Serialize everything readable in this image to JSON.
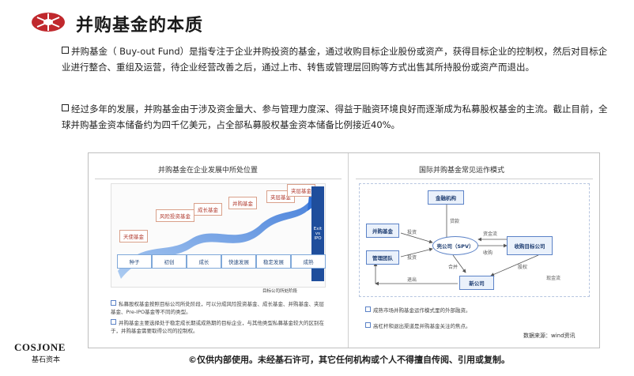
{
  "title": "并购基金的本质",
  "paragraphs": [
    "并购基金（ Buy-out Fund）是指专注于企业并购投资的基金，通过收购目标企业股份或资产，获得目标企业的控制权，然后对目标企业进行整合、重组及运营，待企业经营改善之后，通过上市、转售或管理层回购等方式出售其所持股份或资产而退出。",
    "经过多年的发展，并购基金由于涉及资金量大、参与管理力度深、得益于融资环境良好而逐渐成为私募股权基金的主流。截止目前，全球并购基金资本储备约为四千亿美元，占全部私募股权基金资本储备比例接近40%。"
  ],
  "figure": {
    "left_title": "并购基金在企业发展中所处位置",
    "right_title": "国际并购基金常见运作模式",
    "stages": [
      "天使基金",
      "风险投资基金",
      "成长基金",
      "并购基金",
      "夹层基金",
      "夹层基金"
    ],
    "bottom_stages": [
      "种子",
      "初创",
      "成长",
      "快速发展",
      "稳定发展",
      "成熟"
    ],
    "exit_label": "Exit\nvs\nIPO",
    "axis_label": "目标公司所处阶段",
    "left_notes": [
      "私募股权基金按照目标公司所处阶段，可以分成风险投资基金、成长基金、并购基金、夹层基金、Pre-IPO基金等不同的类型。",
      "并购基金主要选择处于稳定成长期或成熟期的目标企业，与其他类型私募基金较大的区别在于，并购基金需要取得公司的控制权。"
    ],
    "right_boxes": {
      "financial_institution": "金融机构",
      "buyout_fund": "并购基金",
      "management_team": "管理团队",
      "spv": "壳公司（SPV）",
      "target": "收购目标公司",
      "new_company": "新公司"
    },
    "right_labels": {
      "loan": "贷款",
      "invest1": "投资",
      "invest2": "投资",
      "funds": "资金流",
      "acquire": "收购",
      "merge": "合并",
      "dividend": "股权",
      "exit": "退出",
      "cash": "现金流"
    },
    "right_notes": [
      "成熟市场并购基金运作模式里的外部融资。",
      "高杠杆和退出渠道是并购基金关注的焦点。"
    ],
    "source": "数据来源：wind资讯"
  },
  "footer": {
    "brand": "COSJONE",
    "brand_cn": "基石资本",
    "notice": "©仅供内部使用。未经基石许可，其它任何机构或个人不得擅自传阅、引用或复制。"
  },
  "colors": {
    "accent_red": "#c0282d",
    "arrow_blue": "#2e6fd6",
    "box_blue": "#5b82c7"
  }
}
